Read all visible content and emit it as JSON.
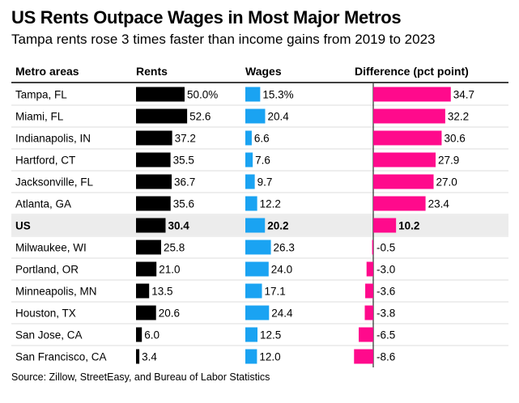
{
  "title": "US Rents Outpace Wages in Most Major Metros",
  "subtitle": "Tampa rents rose 3 times faster than income gains from 2019 to 2023",
  "source": "Source: Zillow, StreetEasy, and Bureau of Labor Statistics",
  "colors": {
    "rents": "#000000",
    "wages": "#1aa3f2",
    "difference": "#ff0a8c",
    "highlight_row": "#ececec",
    "rule": "#000000",
    "divider": "#dcdcdc"
  },
  "chart_data": {
    "type": "table",
    "columns": [
      "Metro areas",
      "Rents",
      "Wages",
      "Difference (pct point)"
    ],
    "highlight": "US",
    "rows": [
      {
        "metro": "Tampa, FL",
        "rents": 50.0,
        "rents_label": "50.0%",
        "wages": 15.3,
        "wages_label": "15.3%",
        "diff": 34.7,
        "diff_label": "34.7"
      },
      {
        "metro": "Miami, FL",
        "rents": 52.6,
        "rents_label": "52.6",
        "wages": 20.4,
        "wages_label": "20.4",
        "diff": 32.2,
        "diff_label": "32.2"
      },
      {
        "metro": "Indianapolis, IN",
        "rents": 37.2,
        "rents_label": "37.2",
        "wages": 6.6,
        "wages_label": "6.6",
        "diff": 30.6,
        "diff_label": "30.6"
      },
      {
        "metro": "Hartford, CT",
        "rents": 35.5,
        "rents_label": "35.5",
        "wages": 7.6,
        "wages_label": "7.6",
        "diff": 27.9,
        "diff_label": "27.9"
      },
      {
        "metro": "Jacksonville, FL",
        "rents": 36.7,
        "rents_label": "36.7",
        "wages": 9.7,
        "wages_label": "9.7",
        "diff": 27.0,
        "diff_label": "27.0"
      },
      {
        "metro": "Atlanta, GA",
        "rents": 35.6,
        "rents_label": "35.6",
        "wages": 12.2,
        "wages_label": "12.2",
        "diff": 23.4,
        "diff_label": "23.4"
      },
      {
        "metro": "US",
        "rents": 30.4,
        "rents_label": "30.4",
        "wages": 20.2,
        "wages_label": "20.2",
        "diff": 10.2,
        "diff_label": "10.2"
      },
      {
        "metro": "Milwaukee, WI",
        "rents": 25.8,
        "rents_label": "25.8",
        "wages": 26.3,
        "wages_label": "26.3",
        "diff": -0.5,
        "diff_label": "-0.5"
      },
      {
        "metro": "Portland, OR",
        "rents": 21.0,
        "rents_label": "21.0",
        "wages": 24.0,
        "wages_label": "24.0",
        "diff": -3.0,
        "diff_label": "-3.0"
      },
      {
        "metro": "Minneapolis, MN",
        "rents": 13.5,
        "rents_label": "13.5",
        "wages": 17.1,
        "wages_label": "17.1",
        "diff": -3.6,
        "diff_label": "-3.6"
      },
      {
        "metro": "Houston, TX",
        "rents": 20.6,
        "rents_label": "20.6",
        "wages": 24.4,
        "wages_label": "24.4",
        "diff": -3.8,
        "diff_label": "-3.8"
      },
      {
        "metro": "San Jose, CA",
        "rents": 6.0,
        "rents_label": "6.0",
        "wages": 12.5,
        "wages_label": "12.5",
        "diff": -6.5,
        "diff_label": "-6.5"
      },
      {
        "metro": "San Francisco, CA",
        "rents": 3.4,
        "rents_label": "3.4",
        "wages": 12.0,
        "wages_label": "12.0",
        "diff": -8.6,
        "diff_label": "-8.6"
      }
    ]
  }
}
